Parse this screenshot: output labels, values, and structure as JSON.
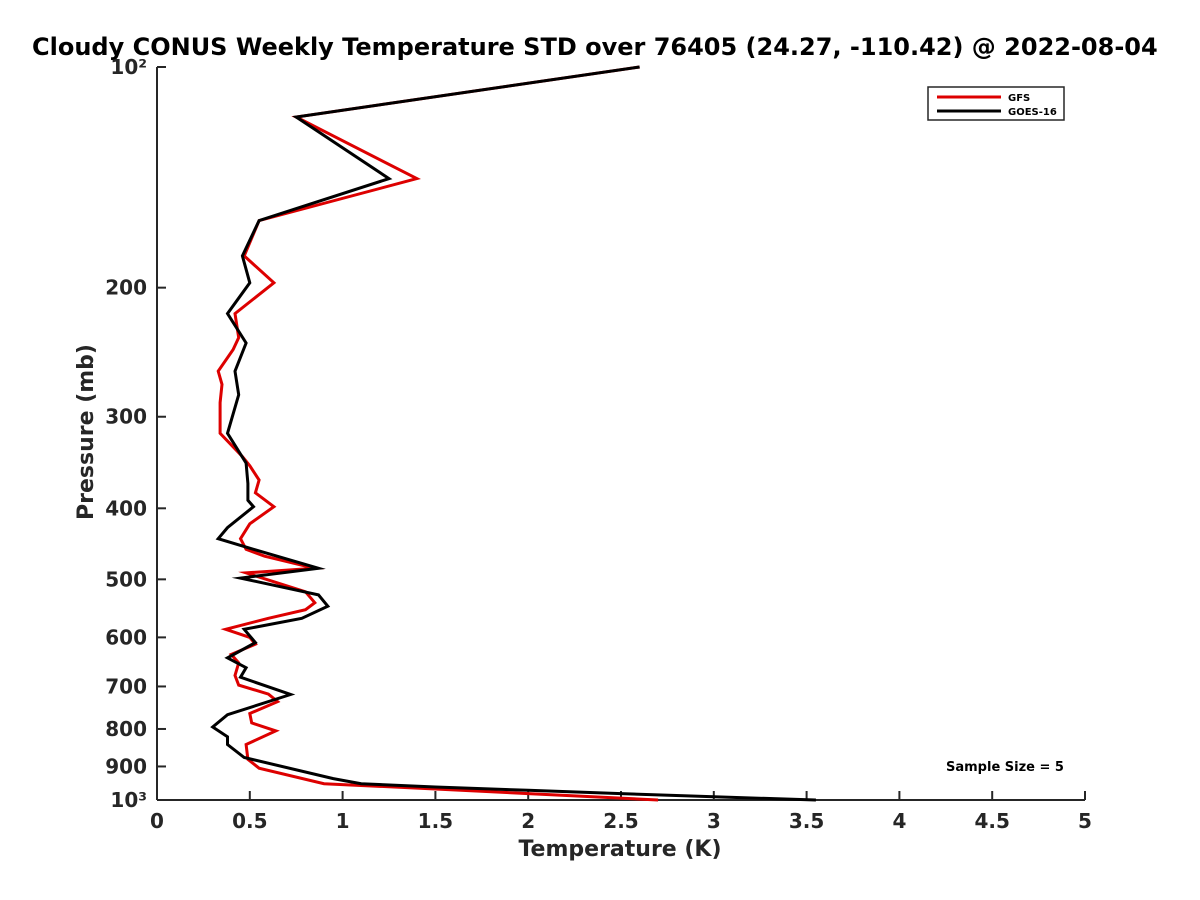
{
  "chart_data": {
    "type": "line",
    "title": "Cloudy CONUS Weekly Temperature STD over 76405 (24.27, -110.42) @ 2022-08-04",
    "xlabel": "Temperature (K)",
    "ylabel": "Pressure (mb)",
    "xlim": [
      0,
      5
    ],
    "ylim": [
      100,
      1000
    ],
    "yscale": "log",
    "y_reversed": true,
    "x_ticks": [
      0,
      0.5,
      1,
      1.5,
      2,
      2.5,
      3,
      3.5,
      4,
      4.5,
      5
    ],
    "x_tick_labels": [
      "0",
      "0.5",
      "1",
      "1.5",
      "2",
      "2.5",
      "3",
      "3.5",
      "4",
      "4.5",
      "5"
    ],
    "y_ticks": [
      100,
      200,
      300,
      400,
      500,
      600,
      700,
      800,
      900,
      1000
    ],
    "y_tick_labels": [
      "10²",
      "200",
      "300",
      "400",
      "500",
      "600",
      "700",
      "800",
      "900",
      "10³"
    ],
    "grid": false,
    "legend_position": "top-right",
    "annotation": "Sample Size = 5",
    "series": [
      {
        "name": "GFS",
        "color": "#dd0000",
        "points": [
          [
            2.6,
            100
          ],
          [
            0.75,
            117
          ],
          [
            1.4,
            142
          ],
          [
            0.55,
            162
          ],
          [
            0.47,
            181
          ],
          [
            0.63,
            197
          ],
          [
            0.42,
            217
          ],
          [
            0.44,
            234
          ],
          [
            0.41,
            243
          ],
          [
            0.33,
            260
          ],
          [
            0.35,
            271
          ],
          [
            0.34,
            287
          ],
          [
            0.34,
            300
          ],
          [
            0.34,
            316
          ],
          [
            0.46,
            340
          ],
          [
            0.5,
            350
          ],
          [
            0.55,
            366
          ],
          [
            0.53,
            381
          ],
          [
            0.63,
            398
          ],
          [
            0.5,
            420
          ],
          [
            0.45,
            440
          ],
          [
            0.48,
            455
          ],
          [
            0.58,
            465
          ],
          [
            0.85,
            483
          ],
          [
            0.48,
            490
          ],
          [
            0.8,
            520
          ],
          [
            0.85,
            538
          ],
          [
            0.8,
            550
          ],
          [
            0.6,
            565
          ],
          [
            0.37,
            585
          ],
          [
            0.5,
            600
          ],
          [
            0.53,
            613
          ],
          [
            0.4,
            633
          ],
          [
            0.44,
            650
          ],
          [
            0.42,
            676
          ],
          [
            0.44,
            697
          ],
          [
            0.6,
            717
          ],
          [
            0.65,
            734
          ],
          [
            0.5,
            762
          ],
          [
            0.51,
            785
          ],
          [
            0.64,
            805
          ],
          [
            0.48,
            840
          ],
          [
            0.49,
            880
          ],
          [
            0.55,
            905
          ],
          [
            0.9,
            950
          ],
          [
            1.5,
            966
          ],
          [
            2.0,
            980
          ],
          [
            2.7,
            1000
          ]
        ]
      },
      {
        "name": "GOES-16",
        "color": "#000000",
        "points": [
          [
            2.6,
            100
          ],
          [
            0.75,
            117
          ],
          [
            1.25,
            142
          ],
          [
            0.55,
            162
          ],
          [
            0.46,
            181
          ],
          [
            0.5,
            197
          ],
          [
            0.38,
            217
          ],
          [
            0.48,
            238
          ],
          [
            0.42,
            260
          ],
          [
            0.44,
            280
          ],
          [
            0.38,
            316
          ],
          [
            0.48,
            347
          ],
          [
            0.49,
            370
          ],
          [
            0.49,
            390
          ],
          [
            0.52,
            398
          ],
          [
            0.38,
            425
          ],
          [
            0.33,
            440
          ],
          [
            0.52,
            455
          ],
          [
            0.87,
            483
          ],
          [
            0.45,
            498
          ],
          [
            0.87,
            525
          ],
          [
            0.92,
            544
          ],
          [
            0.78,
            565
          ],
          [
            0.47,
            585
          ],
          [
            0.53,
            610
          ],
          [
            0.38,
            640
          ],
          [
            0.48,
            660
          ],
          [
            0.45,
            680
          ],
          [
            0.72,
            718
          ],
          [
            0.38,
            765
          ],
          [
            0.3,
            795
          ],
          [
            0.38,
            820
          ],
          [
            0.38,
            840
          ],
          [
            0.47,
            875
          ],
          [
            0.95,
            935
          ],
          [
            1.1,
            950
          ],
          [
            1.5,
            960
          ],
          [
            2.0,
            970
          ],
          [
            2.5,
            980
          ],
          [
            3.0,
            990
          ],
          [
            3.55,
            1000
          ]
        ]
      }
    ]
  }
}
